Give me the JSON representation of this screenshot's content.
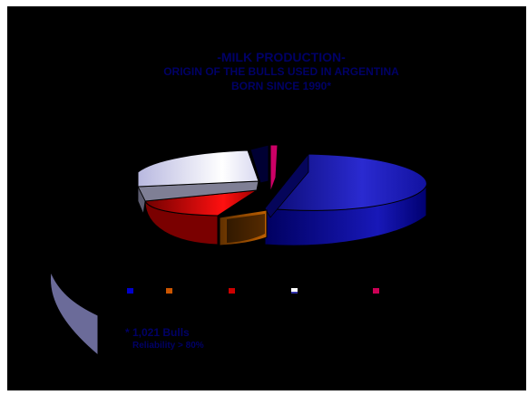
{
  "title": {
    "line1": "-MILK PRODUCTION-",
    "line2": "ORIGIN OF THE BULLS USED IN ARGENTINA",
    "line3": "BORN SINCE 1990*"
  },
  "footnote": {
    "line1": "* 1,021 Bulls",
    "line2": "Reliability > 80%"
  },
  "chart_data": {
    "type": "pie",
    "title": "-MILK PRODUCTION- ORIGIN OF THE BULLS USED IN ARGENTINA BORN SINCE 1990*",
    "three_d": true,
    "slices": [
      {
        "label": "",
        "value": 45,
        "color": "#1a1aa6",
        "exploded": true
      },
      {
        "label": "",
        "value": 8,
        "color": "#b35a00",
        "exploded": true
      },
      {
        "label": "",
        "value": 14,
        "color": "#d10000",
        "exploded": false
      },
      {
        "label": "",
        "value": 3,
        "color": "#7f7f95",
        "exploded": false
      },
      {
        "label": "",
        "value": 26,
        "color": "#eeeeff",
        "exploded": false
      },
      {
        "label": "",
        "value": 2,
        "color": "#000033",
        "exploded": false
      },
      {
        "label": "",
        "value": 2,
        "color": "#cc0066",
        "exploded": false
      }
    ],
    "legend_position": "bottom",
    "legend_colors": [
      "#0000cc",
      "#cc5500",
      "#cc0000",
      "#ffffff",
      "#cc0055"
    ]
  },
  "decor": {
    "shape_color": "#6b6b99"
  }
}
